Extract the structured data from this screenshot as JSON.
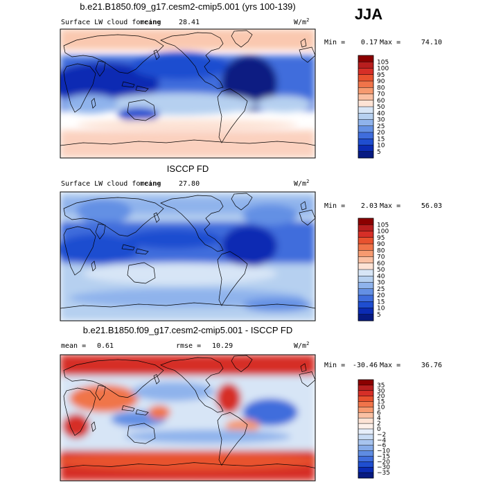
{
  "season": "JJA",
  "chart_data": [
    {
      "type": "heatmap",
      "title": "b.e21.B1850.f09_g17.cesm2-cmip5.001 (yrs 100-139)",
      "variable": "Surface LW cloud forcing",
      "mean_label": "mean=",
      "mean": "28.41",
      "units_base": "W/m",
      "units_exp": "2",
      "min_label": "Min =",
      "min": "0.17",
      "max_label": "Max =",
      "max": "74.10",
      "levels": [
        "105",
        "100",
        "95",
        "90",
        "80",
        "70",
        "60",
        "50",
        "40",
        "30",
        "25",
        "20",
        "15",
        "10",
        "5"
      ],
      "colors": [
        "#8b0000",
        "#b81e1e",
        "#d62f27",
        "#e8522f",
        "#f0744a",
        "#f69a70",
        "#fac0a3",
        "#fde3d5",
        "#d7e5f6",
        "#b6d0f0",
        "#8fb3ec",
        "#6490e4",
        "#3f6ddc",
        "#1f4ed0",
        "#0b2bb3",
        "#071a82"
      ]
    },
    {
      "type": "heatmap",
      "title": "ISCCP FD",
      "variable": "Surface LW cloud forcing",
      "mean_label": "mean=",
      "mean": "27.80",
      "units_base": "W/m",
      "units_exp": "2",
      "min_label": "Min =",
      "min": "2.03",
      "max_label": "Max =",
      "max": "56.03",
      "levels": [
        "105",
        "100",
        "95",
        "90",
        "80",
        "70",
        "60",
        "50",
        "40",
        "30",
        "25",
        "20",
        "15",
        "10",
        "5"
      ],
      "colors": [
        "#8b0000",
        "#b81e1e",
        "#d62f27",
        "#e8522f",
        "#f0744a",
        "#f69a70",
        "#fac0a3",
        "#fde3d5",
        "#d7e5f6",
        "#b6d0f0",
        "#8fb3ec",
        "#6490e4",
        "#3f6ddc",
        "#1f4ed0",
        "#0b2bb3",
        "#071a82"
      ]
    },
    {
      "type": "heatmap",
      "title": "b.e21.B1850.f09_g17.cesm2-cmip5.001 - ISCCP FD",
      "mean_label": "mean =",
      "mean": "0.61",
      "rmse_label": "rmse =",
      "rmse": "10.29",
      "units_base": "W/m",
      "units_exp": "2",
      "min_label": "Min =",
      "min": "-30.46",
      "max_label": "Max =",
      "max": "36.76",
      "levels": [
        "35",
        "30",
        "20",
        "15",
        "10",
        "6",
        "4",
        "2",
        "0",
        "−2",
        "−4",
        "−6",
        "−10",
        "−15",
        "−20",
        "−30",
        "−35"
      ],
      "colors": [
        "#8b0000",
        "#b81e1e",
        "#d62f27",
        "#e8522f",
        "#f0744a",
        "#f69a70",
        "#fac0a3",
        "#fde3d5",
        "#fdf0ea",
        "#e6eefa",
        "#c8dbf4",
        "#a8c4ef",
        "#86abe9",
        "#5f8ce2",
        "#3f6ddc",
        "#1f4ed0",
        "#0b2bb3",
        "#071a82"
      ]
    }
  ]
}
